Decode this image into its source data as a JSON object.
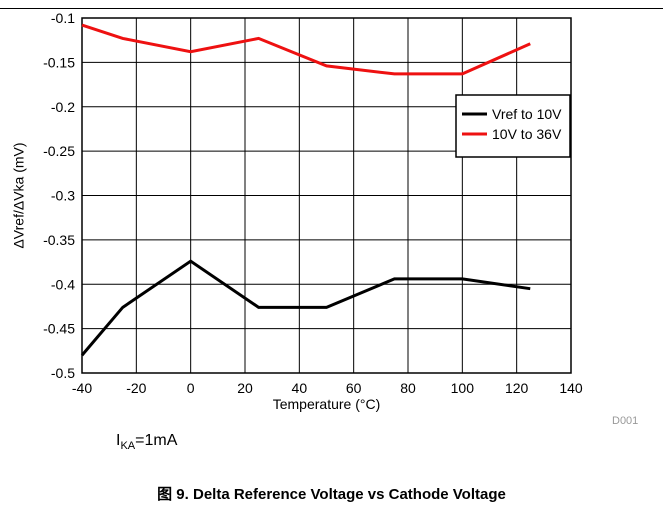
{
  "chart_data": {
    "type": "line",
    "x": [
      -40,
      -25,
      0,
      25,
      50,
      75,
      100,
      125
    ],
    "series": [
      {
        "name": "Vref to 10V",
        "color": "#000000",
        "values": [
          -0.48,
          -0.426,
          -0.374,
          -0.426,
          -0.426,
          -0.394,
          -0.394,
          -0.405
        ]
      },
      {
        "name": "10V to 36V",
        "color": "#ee1111",
        "values": [
          -0.108,
          -0.123,
          -0.138,
          -0.123,
          -0.154,
          -0.163,
          -0.163,
          -0.129
        ]
      }
    ],
    "xlabel": "Temperature (°C)",
    "ylabel": "ΔVref/ΔVka (mV)",
    "xlim": [
      -40,
      140
    ],
    "ylim": [
      -0.5,
      -0.1
    ],
    "xticks": [
      "-40",
      "-20",
      "0",
      "20",
      "40",
      "60",
      "80",
      "100",
      "120",
      "140"
    ],
    "yticks": [
      "-0.1",
      "-0.15",
      "-0.2",
      "-0.25",
      "-0.3",
      "-0.35",
      "-0.4",
      "-0.45",
      "-0.5"
    ],
    "grid": true,
    "legend_position": "top-right"
  },
  "figure_code": "D001",
  "condition": {
    "base": "I",
    "sub": "KA",
    "rest": "=1mA"
  },
  "caption": "图 9. Delta Reference Voltage vs Cathode Voltage"
}
